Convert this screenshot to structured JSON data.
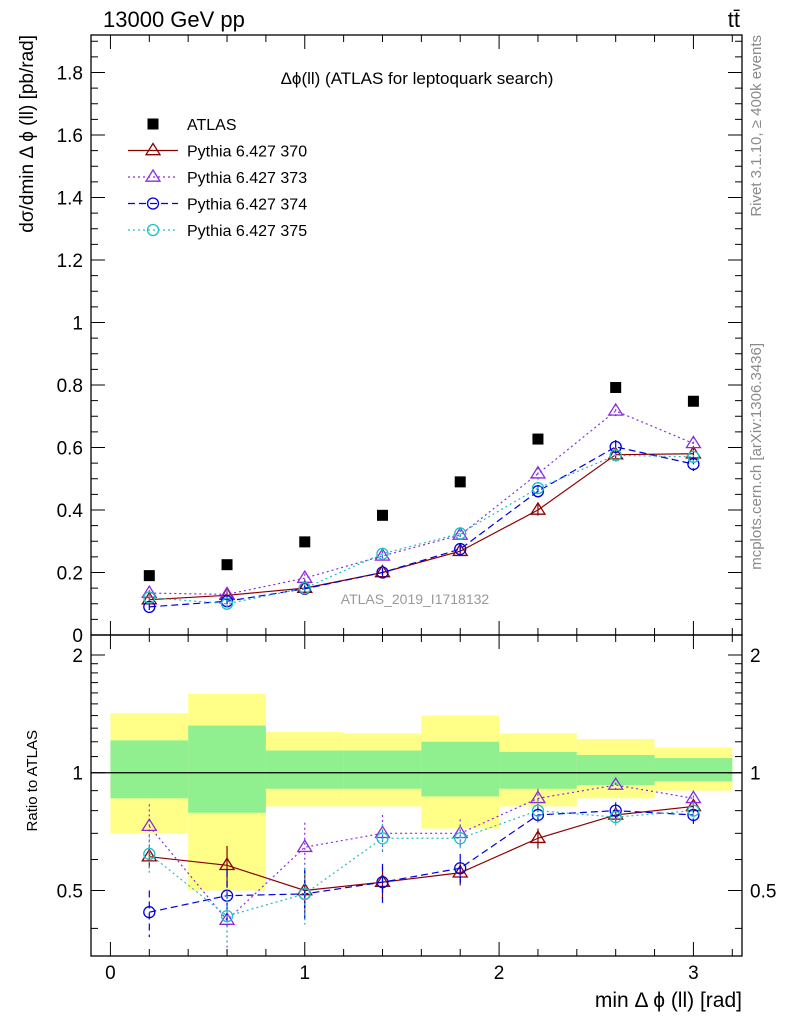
{
  "header": {
    "left": "13000 GeV pp",
    "right": "tt̄"
  },
  "side_labels": {
    "rivet": "Rivet 3.1.10, ≥ 400k events",
    "mcplots": "mcplots.cern.ch [arXiv:1306.3436]"
  },
  "chart_data": [
    {
      "type": "scatter",
      "panel": "main",
      "title": "Δϕ(ll) (ATLAS for leptoquark search)",
      "watermark": "ATLAS_2019_I1718132",
      "ylabel": "dσ/dmin Δ ϕ (ll) [pb/rad]",
      "xlabel": "",
      "xlim": [
        -0.1,
        3.25
      ],
      "ylim": [
        0,
        1.92
      ],
      "x_ticks": [
        0,
        1,
        2,
        3
      ],
      "y_ticks": [
        0,
        0.2,
        0.4,
        0.6,
        0.8,
        1,
        1.2,
        1.4,
        1.6,
        1.8
      ],
      "y_tick_labels": [
        "0",
        "0.2",
        "0.4",
        "0.6",
        "0.8",
        "1",
        "1.2",
        "1.4",
        "1.6",
        "1.8"
      ],
      "legend_position": "top-left",
      "x": [
        0.2,
        0.6,
        1.0,
        1.4,
        1.8,
        2.2,
        2.6,
        3.0
      ],
      "series": [
        {
          "name": "ATLAS",
          "color": "#000000",
          "marker": "square",
          "line": "none",
          "values": [
            0.19,
            0.225,
            0.298,
            0.383,
            0.49,
            0.627,
            0.792,
            0.748
          ],
          "errors": [
            0.005,
            0.005,
            0.005,
            0.006,
            0.007,
            0.008,
            0.01,
            0.01
          ]
        },
        {
          "name": "Pythia 6.427 370",
          "color": "#8b0000",
          "marker": "triangle",
          "line": "solid",
          "values": [
            0.113,
            0.127,
            0.15,
            0.2,
            0.268,
            0.4,
            0.577,
            0.58
          ],
          "errors": [
            0.008,
            0.01,
            0.01,
            0.012,
            0.014,
            0.018,
            0.02,
            0.02
          ]
        },
        {
          "name": "Pythia 6.427 373",
          "color": "#8a2be2",
          "marker": "triangle",
          "line": "dotted",
          "values": [
            0.134,
            0.13,
            0.182,
            0.253,
            0.32,
            0.516,
            0.717,
            0.613
          ],
          "errors": [
            0.01,
            0.012,
            0.014,
            0.015,
            0.016,
            0.02,
            0.022,
            0.022
          ]
        },
        {
          "name": "Pythia 6.427 374",
          "color": "#0000dd",
          "marker": "circle",
          "line": "dashed",
          "values": [
            0.09,
            0.108,
            0.148,
            0.2,
            0.275,
            0.46,
            0.602,
            0.547
          ],
          "errors": [
            0.01,
            0.012,
            0.013,
            0.014,
            0.016,
            0.02,
            0.022,
            0.022
          ]
        },
        {
          "name": "Pythia 6.427 375",
          "color": "#20c0c0",
          "marker": "circle",
          "line": "dotted",
          "values": [
            0.12,
            0.1,
            0.15,
            0.26,
            0.325,
            0.47,
            0.575,
            0.57
          ],
          "errors": [
            0.01,
            0.012,
            0.013,
            0.014,
            0.016,
            0.02,
            0.022,
            0.022
          ]
        }
      ]
    },
    {
      "type": "scatter",
      "panel": "ratio",
      "ylabel": "Ratio to ATLAS",
      "xlabel": "min Δ ϕ (ll) [rad]",
      "xlim": [
        -0.1,
        3.25
      ],
      "ylim": [
        0.34,
        2.25
      ],
      "x_ticks": [
        0,
        1,
        2,
        3
      ],
      "x_tick_labels": [
        "0",
        "1",
        "2",
        "3"
      ],
      "y_ticks": [
        0.5,
        1,
        2
      ],
      "y_tick_labels": [
        "0.5",
        "1",
        "2"
      ],
      "reference_line": 1,
      "bin_edges": [
        0,
        0.4,
        0.8,
        1.2,
        1.6,
        2.0,
        2.4,
        2.8,
        3.2
      ],
      "band_inner": {
        "color": "#90f090",
        "low": [
          0.86,
          0.79,
          0.91,
          0.91,
          0.87,
          0.91,
          0.93,
          0.95
        ],
        "high": [
          1.21,
          1.32,
          1.14,
          1.14,
          1.2,
          1.13,
          1.11,
          1.09
        ]
      },
      "band_outer": {
        "color": "#ffff88",
        "low": [
          0.7,
          0.5,
          0.82,
          0.82,
          0.72,
          0.82,
          0.86,
          0.9
        ],
        "high": [
          1.42,
          1.59,
          1.27,
          1.26,
          1.4,
          1.26,
          1.22,
          1.16
        ]
      },
      "x": [
        0.2,
        0.6,
        1.0,
        1.4,
        1.8,
        2.2,
        2.6,
        3.0
      ],
      "series": [
        {
          "name": "Pythia 6.427 370",
          "color": "#8b0000",
          "marker": "triangle",
          "line": "solid",
          "values": [
            0.61,
            0.58,
            0.5,
            0.525,
            0.555,
            0.68,
            0.78,
            0.82
          ],
          "errors": [
            0.04,
            0.07,
            0.06,
            0.05,
            0.04,
            0.04,
            0.03,
            0.03
          ]
        },
        {
          "name": "Pythia 6.427 373",
          "color": "#8a2be2",
          "marker": "triangle",
          "line": "dotted",
          "values": [
            0.73,
            0.42,
            0.645,
            0.7,
            0.7,
            0.86,
            0.93,
            0.86
          ],
          "errors": [
            0.1,
            0.08,
            0.1,
            0.08,
            0.06,
            0.05,
            0.04,
            0.04
          ]
        },
        {
          "name": "Pythia 6.427 374",
          "color": "#0000dd",
          "marker": "circle",
          "line": "dashed",
          "values": [
            0.44,
            0.485,
            0.49,
            0.525,
            0.57,
            0.78,
            0.8,
            0.78
          ],
          "errors": [
            0.06,
            0.08,
            0.08,
            0.06,
            0.05,
            0.05,
            0.04,
            0.04
          ]
        },
        {
          "name": "Pythia 6.427 375",
          "color": "#20c0c0",
          "marker": "circle",
          "line": "dotted",
          "values": [
            0.62,
            0.43,
            0.49,
            0.68,
            0.68,
            0.8,
            0.77,
            0.8
          ],
          "errors": [
            0.07,
            0.07,
            0.08,
            0.06,
            0.05,
            0.05,
            0.04,
            0.04
          ]
        }
      ]
    }
  ]
}
